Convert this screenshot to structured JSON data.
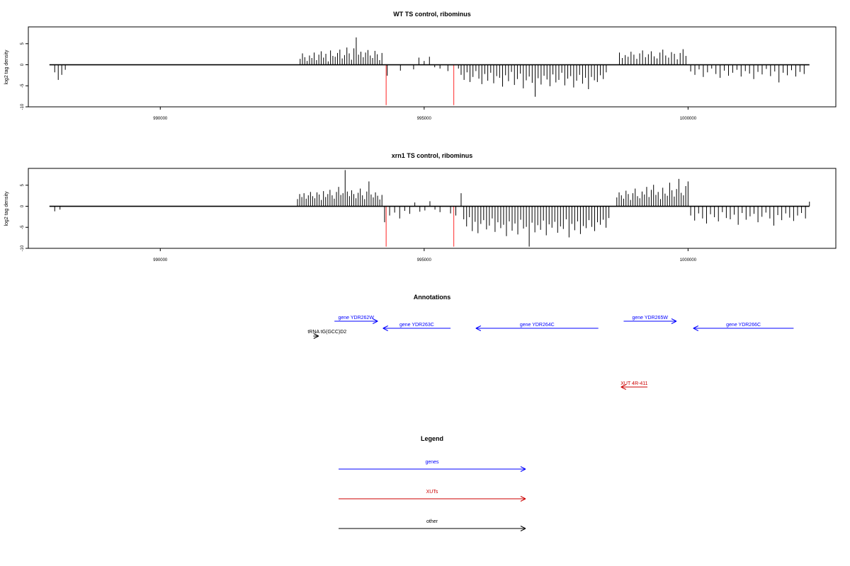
{
  "colors": {
    "genes": "#0000ff",
    "XUTs": "#cc0000",
    "other": "#000000",
    "highlight": "#ff5555",
    "signal": "#000000"
  },
  "chart_data": [
    {
      "type": "bar",
      "title": "WT TS control, ribominus",
      "ylabel": "log2 tag density",
      "xlim": [
        987500,
        1002800
      ],
      "ylim": [
        -10,
        9
      ],
      "xticks": [
        990000,
        995000,
        1000000
      ],
      "xtick_labels": [
        "990000",
        "995000",
        "1000000"
      ],
      "yticks": [
        -10,
        -5,
        0,
        5
      ],
      "ytick_labels": [
        "-10",
        "-5",
        "0",
        "5"
      ],
      "grid": false,
      "signal": {
        "x_range": [
          987900,
          1002300
        ],
        "baseline": 0,
        "regions": [
          {
            "from": 988000,
            "to": 988200,
            "values": [
              -1.8,
              -3.6,
              -2.4,
              -1.2
            ]
          },
          {
            "from": 992650,
            "to": 994200,
            "values": [
              1.4,
              2.7,
              1.8,
              0.9,
              2.2,
              1.6,
              2.9,
              1.1,
              2.4,
              3.2,
              1.7,
              2.6,
              0.8,
              3.4,
              2.1,
              1.9,
              2.8,
              3.6,
              1.5,
              2.3,
              4.1,
              2.7,
              1.2,
              3.9,
              6.5,
              2.4,
              3.1,
              1.8,
              2.9,
              3.5,
              2.2,
              1.6,
              3.3,
              2.5,
              1.1,
              2.8
            ]
          },
          {
            "from": 994300,
            "to": 994800,
            "values": [
              -2.6,
              -1.4,
              -1.1
            ]
          },
          {
            "from": 994900,
            "to": 995300,
            "values": [
              1.7,
              0.9,
              1.9,
              -0.6,
              -0.9
            ]
          },
          {
            "from": 995450,
            "to": 995650,
            "values": [
              -1.5,
              -0.9
            ]
          },
          {
            "from": 995700,
            "to": 998450,
            "values": [
              -2.4,
              -3.6,
              -1.8,
              -4.1,
              -2.9,
              -1.5,
              -3.3,
              -4.6,
              -2.2,
              -3.8,
              -1.9,
              -4.4,
              -2.7,
              -3.1,
              -5.2,
              -2.5,
              -3.9,
              -1.7,
              -4.8,
              -3.4,
              -2.1,
              -5.6,
              -3.7,
              -2.8,
              -4.3,
              -7.6,
              -3.2,
              -4.7,
              -2.6,
              -3.5,
              -5.1,
              -2.3,
              -4.2,
              -3.6,
              -1.9,
              -4.9,
              -3.3,
              -2.7,
              -5.4,
              -3.8,
              -2.4,
              -4.5,
              -3.1,
              -5.8,
              -2.9,
              -3.7,
              -4.1,
              -2.5,
              -3.4,
              -1.8
            ]
          },
          {
            "from": 998700,
            "to": 999960,
            "values": [
              2.9,
              1.6,
              2.3,
              1.9,
              3.1,
              2.4,
              1.4,
              2.7,
              3.4,
              1.8,
              2.5,
              3.2,
              2.0,
              1.5,
              2.9,
              3.6,
              2.2,
              1.7,
              3.0,
              2.6,
              1.3,
              2.8,
              3.7,
              2.1
            ]
          },
          {
            "from": 1000050,
            "to": 1002200,
            "values": [
              -1.6,
              -2.4,
              -1.1,
              -2.9,
              -1.8,
              -0.9,
              -2.2,
              -3.1,
              -1.4,
              -2.6,
              -1.9,
              -1.2,
              -2.8,
              -1.5,
              -2.1,
              -3.4,
              -1.7,
              -2.3,
              -1.0,
              -2.7,
              -1.6,
              -4.2,
              -1.9,
              -2.5,
              -1.3,
              -2.8,
              -1.7,
              -2.2
            ]
          }
        ]
      },
      "highlight_bars": [
        {
          "x": 994280,
          "value": -9.6
        },
        {
          "x": 995560,
          "value": -9.6
        }
      ]
    },
    {
      "type": "bar",
      "title": "xrn1 TS control, ribominus",
      "ylabel": "log2 tag density",
      "xlim": [
        987500,
        1002800
      ],
      "ylim": [
        -10,
        9
      ],
      "xticks": [
        990000,
        995000,
        1000000
      ],
      "xtick_labels": [
        "990000",
        "995000",
        "1000000"
      ],
      "yticks": [
        -10,
        -5,
        0,
        5
      ],
      "ytick_labels": [
        "-10",
        "-5",
        "0",
        "5"
      ],
      "grid": false,
      "signal": {
        "x_range": [
          987900,
          1002300
        ],
        "baseline": 0,
        "regions": [
          {
            "from": 988000,
            "to": 988100,
            "values": [
              -1.2,
              -0.8
            ]
          },
          {
            "from": 992600,
            "to": 994200,
            "values": [
              1.7,
              2.9,
              2.2,
              3.1,
              1.8,
              2.6,
              3.4,
              2.4,
              1.9,
              3.3,
              2.8,
              1.5,
              3.6,
              2.2,
              2.9,
              3.9,
              2.6,
              1.8,
              3.4,
              4.6,
              2.7,
              3.1,
              8.6,
              3.5,
              2.4,
              3.8,
              2.9,
              1.9,
              3.2,
              4.2,
              2.6,
              1.7,
              3.5,
              5.9,
              2.8,
              2.1,
              3.3,
              2.5,
              1.6,
              2.7
            ]
          },
          {
            "from": 994250,
            "to": 995300,
            "values": [
              -3.8,
              -2.2,
              -1.5,
              -2.9,
              -1.1,
              -1.8,
              0.9,
              -1.3,
              -1.0,
              1.2,
              -0.8,
              -1.4
            ]
          },
          {
            "from": 995500,
            "to": 995700,
            "values": [
              -1.7,
              -2.2,
              3.1
            ]
          },
          {
            "from": 995750,
            "to": 998500,
            "values": [
              -3.1,
              -4.8,
              -2.6,
              -5.9,
              -3.7,
              -6.4,
              -4.2,
              -3.3,
              -5.5,
              -4.6,
              -2.9,
              -6.1,
              -3.8,
              -5.2,
              -4.4,
              -7.1,
              -3.6,
              -5.8,
              -4.1,
              -6.7,
              -3.2,
              -5.3,
              -4.9,
              -9.6,
              -3.9,
              -6.2,
              -4.5,
              -5.6,
              -3.4,
              -6.9,
              -4.3,
              -5.1,
              -3.7,
              -6.3,
              -4.8,
              -5.4,
              -3.1,
              -7.4,
              -4.2,
              -5.7,
              -3.6,
              -6.6,
              -4.7,
              -5.2,
              -3.3,
              -4.9,
              -5.9,
              -3.8,
              -4.4,
              -3.2,
              -5.1,
              -2.8
            ]
          },
          {
            "from": 998650,
            "to": 1000000,
            "values": [
              2.1,
              3.3,
              2.6,
              1.8,
              3.7,
              2.9,
              1.5,
              3.1,
              4.2,
              2.4,
              1.9,
              3.5,
              2.8,
              4.6,
              2.2,
              3.9,
              5.1,
              2.7,
              3.4,
              1.7,
              4.4,
              3.0,
              2.5,
              5.6,
              3.8,
              2.3,
              4.1,
              6.5,
              3.2,
              2.6,
              4.8,
              5.9
            ]
          },
          {
            "from": 1000050,
            "to": 1002300,
            "values": [
              -2.2,
              -3.4,
              -1.7,
              -2.9,
              -4.1,
              -1.9,
              -2.6,
              -3.6,
              -1.4,
              -2.8,
              -3.1,
              -2.0,
              -4.4,
              -1.6,
              -3.2,
              -2.4,
              -1.8,
              -3.8,
              -2.5,
              -1.5,
              -2.9,
              -4.6,
              -2.1,
              -3.3,
              -1.7,
              -2.7,
              -3.5,
              -2.2,
              -1.6,
              -2.9,
              1.1
            ]
          }
        ]
      },
      "highlight_bars": [
        {
          "x": 994280,
          "value": -9.6
        },
        {
          "x": 995560,
          "value": -9.6
        }
      ]
    }
  ],
  "annotations": {
    "title": "Annotations",
    "items": [
      {
        "label": "gene YDR262W",
        "type": "genes",
        "start": 993300,
        "end": 994120,
        "row": 0
      },
      {
        "label": "gene YDR263C",
        "type": "genes",
        "start": 995500,
        "end": 994220,
        "row": 1
      },
      {
        "label": "gene YDR264C",
        "type": "genes",
        "start": 998300,
        "end": 995980,
        "row": 1
      },
      {
        "label": "gene YDR265W",
        "type": "genes",
        "start": 998780,
        "end": 999780,
        "row": 0
      },
      {
        "label": "gene YDR266C",
        "type": "genes",
        "start": 1002000,
        "end": 1000100,
        "row": 1
      },
      {
        "label": "tRNA tG(GCC)D2",
        "type": "other",
        "start": 992900,
        "end": 993000,
        "row": 2
      },
      {
        "label": "XUT 4R-411",
        "type": "XUTs",
        "start": 999230,
        "end": 998730,
        "row": 3
      }
    ]
  },
  "legend": {
    "title": "Legend",
    "items": [
      {
        "label": "genes",
        "type": "genes"
      },
      {
        "label": "XUTs",
        "type": "XUTs"
      },
      {
        "label": "other",
        "type": "other"
      }
    ]
  }
}
